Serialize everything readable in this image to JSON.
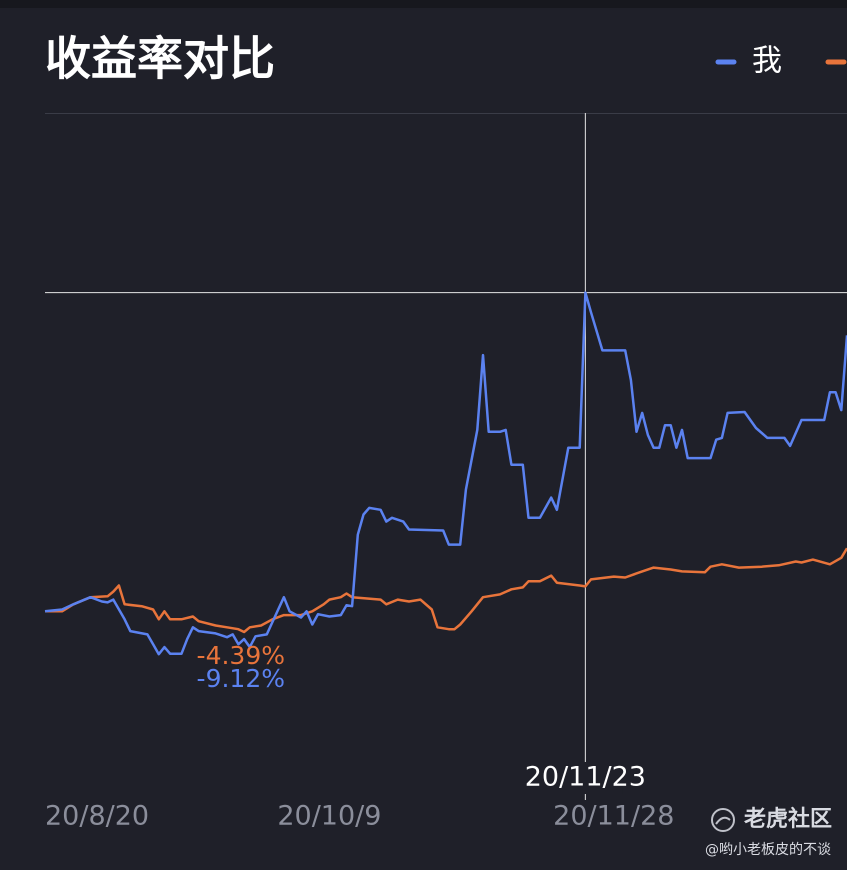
{
  "chart_data": {
    "type": "line",
    "title": "收益率对比",
    "ylim": [
      -38,
      106
    ],
    "xticks": [
      "20/8/20",
      "20/10/9",
      "20/11/28"
    ],
    "crosshair": {
      "x": "20/11/23",
      "y": 67.8
    },
    "annotations": [
      {
        "text": "-4.39%",
        "value": -4.39,
        "series": 1
      },
      {
        "text": "-9.12%",
        "value": -9.12,
        "series": 0
      }
    ],
    "series": [
      {
        "name": "我",
        "color": "#5b82f0",
        "x": [
          "20/8/20",
          "20/8/23",
          "20/8/25",
          "20/8/28",
          "20/8/30",
          "20/8/31",
          "20/9/1",
          "20/9/3",
          "20/9/4",
          "20/9/7",
          "20/9/8",
          "20/9/9",
          "20/9/10",
          "20/9/11",
          "20/9/13",
          "20/9/14",
          "20/9/15",
          "20/9/16",
          "20/9/19",
          "20/9/21",
          "20/9/22",
          "20/9/23",
          "20/9/24",
          "20/9/25",
          "20/9/26",
          "20/9/28",
          "20/9/30",
          "20/10/1",
          "20/10/2",
          "20/10/4",
          "20/10/5",
          "20/10/6",
          "20/10/7",
          "20/10/9",
          "20/10/11",
          "20/10/12",
          "20/10/13",
          "20/10/14",
          "20/10/15",
          "20/10/16",
          "20/10/18",
          "20/10/19",
          "20/10/20",
          "20/10/22",
          "20/10/23",
          "20/10/29",
          "20/10/30",
          "20/11/1",
          "20/11/2",
          "20/11/4",
          "20/11/5",
          "20/11/6",
          "20/11/8",
          "20/11/9",
          "20/11/10",
          "20/11/12",
          "20/11/13",
          "20/11/15",
          "20/11/17",
          "20/11/18",
          "20/11/20",
          "20/11/22",
          "20/11/23",
          "20/11/24",
          "20/11/26",
          "20/11/30",
          "20/12/1",
          "20/12/2",
          "20/12/3",
          "20/12/4",
          "20/12/5",
          "20/12/6",
          "20/12/7",
          "20/12/8",
          "20/12/9",
          "20/12/10",
          "20/12/11",
          "20/12/15",
          "20/12/16",
          "20/12/17",
          "20/12/18",
          "20/12/21",
          "20/12/23",
          "20/12/25",
          "20/12/28",
          "20/12/29",
          "20/12/31",
          "21/1/4",
          "21/1/5",
          "21/1/6",
          "21/1/7",
          "21/1/8"
        ],
        "values": [
          0,
          0.4,
          1.5,
          3.0,
          2.1,
          1.9,
          2.5,
          -1.7,
          -4.2,
          -4.9,
          -7.0,
          -9.12,
          -7.6,
          -9.0,
          -9.0,
          -5.9,
          -3.4,
          -4.2,
          -4.7,
          -5.5,
          -4.9,
          -7.0,
          -5.9,
          -7.6,
          -5.3,
          -4.9,
          0.4,
          3.0,
          0,
          -1.3,
          0,
          -2.8,
          -0.6,
          -1.1,
          -0.8,
          1.3,
          1.1,
          16.3,
          20.6,
          22.0,
          21.6,
          19.1,
          19.9,
          19.1,
          17.4,
          17.2,
          14.2,
          14.2,
          25.9,
          38.6,
          54.5,
          38.2,
          38.2,
          38.6,
          31.2,
          31.2,
          19.9,
          19.9,
          24.2,
          21.6,
          34.8,
          34.8,
          67.8,
          63.6,
          55.5,
          55.5,
          49.2,
          38.2,
          42.2,
          37.5,
          34.8,
          34.8,
          39.6,
          39.6,
          34.8,
          38.6,
          32.6,
          32.6,
          36.5,
          36.9,
          42.2,
          42.4,
          39.0,
          36.9,
          36.9,
          35.2,
          40.7,
          40.7,
          46.6,
          46.6,
          42.8,
          58.7
        ]
      },
      {
        "color": "#e8743b",
        "x": [
          "20/8/20",
          "20/8/23",
          "20/8/25",
          "20/8/28",
          "20/8/31",
          "20/9/1",
          "20/9/2",
          "20/9/3",
          "20/9/6",
          "20/9/8",
          "20/9/9",
          "20/9/10",
          "20/9/11",
          "20/9/13",
          "20/9/15",
          "20/9/16",
          "20/9/19",
          "20/9/21",
          "20/9/23",
          "20/9/24",
          "20/9/25",
          "20/9/27",
          "20/9/29",
          "20/10/1",
          "20/10/4",
          "20/10/6",
          "20/10/8",
          "20/10/9",
          "20/10/11",
          "20/10/12",
          "20/10/13",
          "20/10/18",
          "20/10/19",
          "20/10/21",
          "20/10/23",
          "20/10/25",
          "20/10/27",
          "20/10/28",
          "20/10/30",
          "20/10/31",
          "20/11/1",
          "20/11/3",
          "20/11/5",
          "20/11/8",
          "20/11/10",
          "20/11/12",
          "20/11/13",
          "20/11/15",
          "20/11/17",
          "20/11/18",
          "20/11/22",
          "20/11/23",
          "20/11/24",
          "20/11/28",
          "20/11/30",
          "20/12/3",
          "20/12/5",
          "20/12/8",
          "20/12/10",
          "20/12/14",
          "20/12/15",
          "20/12/17",
          "20/12/20",
          "20/12/24",
          "20/12/27",
          "20/12/30",
          "20/12/31",
          "21/1/2",
          "21/1/5",
          "21/1/7",
          "21/1/8"
        ],
        "values": [
          0,
          0,
          1.5,
          3.0,
          3.2,
          4.2,
          5.5,
          1.5,
          1.1,
          0.4,
          -1.7,
          0,
          -1.7,
          -1.7,
          -1.1,
          -2.1,
          -3.0,
          -3.4,
          -3.8,
          -4.39,
          -3.4,
          -3.0,
          -1.7,
          -0.8,
          -0.8,
          0,
          1.5,
          2.5,
          3.0,
          3.8,
          3.0,
          2.5,
          1.5,
          2.5,
          2.1,
          2.5,
          0.4,
          -3.4,
          -3.8,
          -3.8,
          -2.8,
          0,
          3.0,
          3.6,
          4.7,
          5.1,
          6.4,
          6.4,
          7.6,
          6.1,
          5.5,
          5.3,
          6.8,
          7.4,
          7.2,
          8.5,
          9.3,
          8.9,
          8.5,
          8.3,
          9.5,
          10.0,
          9.3,
          9.5,
          9.8,
          10.6,
          10.4,
          11.0,
          10.0,
          11.4,
          13.4
        ]
      }
    ],
    "watermark": {
      "brand": "老虎社区",
      "author": "@哟小老板皮的不谈"
    }
  }
}
